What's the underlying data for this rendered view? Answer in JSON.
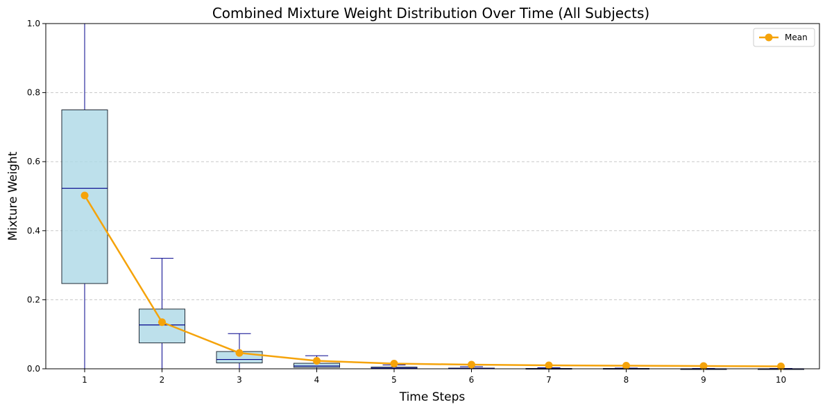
{
  "chart_data": {
    "type": "box",
    "title": "Combined Mixture Weight Distribution Over Time (All Subjects)",
    "xlabel": "Time Steps",
    "ylabel": "Mixture Weight",
    "categories": [
      "1",
      "2",
      "3",
      "4",
      "5",
      "6",
      "7",
      "8",
      "9",
      "10"
    ],
    "ylim": [
      0,
      1.0
    ],
    "yticks": [
      "0.0",
      "0.2",
      "0.4",
      "0.6",
      "0.8",
      "1.0"
    ],
    "grid": "y-dashed",
    "legend_position": "top-right",
    "colors": {
      "box_fill": "#add8e6",
      "box_edge": "#1f2a36",
      "whisker": "#00008b",
      "median": "#00008b",
      "mean_line": "#f5a30a",
      "grid": "#c8c8c8"
    },
    "boxes": [
      {
        "whisker_low": 0.0,
        "q1": 0.247,
        "median": 0.523,
        "q3": 0.75,
        "whisker_high": 1.0
      },
      {
        "whisker_low": 0.0,
        "q1": 0.075,
        "median": 0.127,
        "q3": 0.173,
        "whisker_high": 0.32
      },
      {
        "whisker_low": 0.0,
        "q1": 0.017,
        "median": 0.027,
        "q3": 0.05,
        "whisker_high": 0.102
      },
      {
        "whisker_low": 0.0,
        "q1": 0.004,
        "median": 0.008,
        "q3": 0.016,
        "whisker_high": 0.038
      },
      {
        "whisker_low": 0.0,
        "q1": 0.001,
        "median": 0.002,
        "q3": 0.005,
        "whisker_high": 0.011
      },
      {
        "whisker_low": 0.0,
        "q1": 0.0,
        "median": 0.001,
        "q3": 0.002,
        "whisker_high": 0.006
      },
      {
        "whisker_low": 0.0,
        "q1": 0.0,
        "median": 0.0,
        "q3": 0.001,
        "whisker_high": 0.003
      },
      {
        "whisker_low": 0.0,
        "q1": 0.0,
        "median": 0.0,
        "q3": 0.001,
        "whisker_high": 0.002
      },
      {
        "whisker_low": 0.0,
        "q1": 0.0,
        "median": 0.0,
        "q3": 0.0,
        "whisker_high": 0.001
      },
      {
        "whisker_low": 0.0,
        "q1": 0.0,
        "median": 0.0,
        "q3": 0.0,
        "whisker_high": 0.001
      }
    ],
    "series": [
      {
        "name": "Mean",
        "values": [
          0.502,
          0.135,
          0.046,
          0.023,
          0.015,
          0.012,
          0.01,
          0.009,
          0.008,
          0.007
        ]
      }
    ]
  }
}
